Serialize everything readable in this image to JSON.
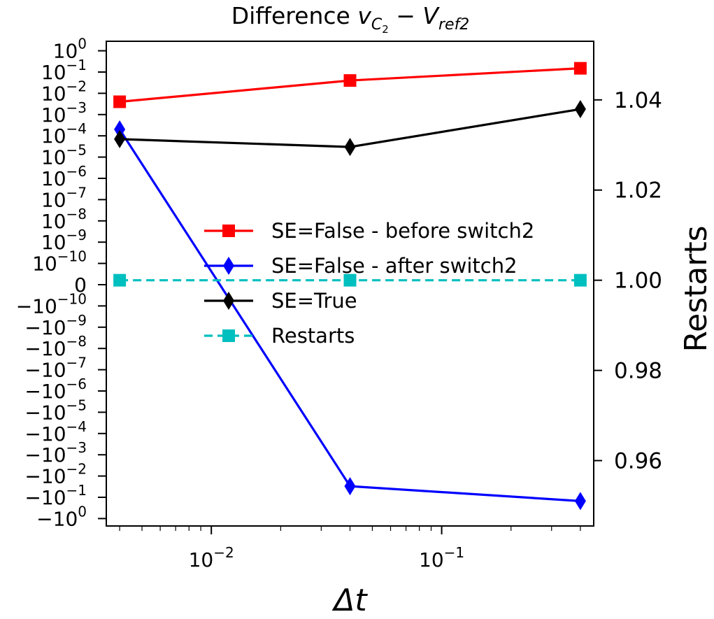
{
  "chart_data": {
    "type": "line",
    "title": "Difference v_C2 − V_ref2",
    "title_parts": {
      "prefix": "Difference ",
      "v": "v",
      "c": "C",
      "two": "2",
      "minus": " − ",
      "V": "V",
      "ref": "ref2"
    },
    "xlabel": "Δt",
    "ylabel_right": "Restarts",
    "x_scale": "log",
    "y_scale_left": "symlog",
    "x": [
      0.004,
      0.04,
      0.4
    ],
    "x_ticks": [
      {
        "value": 0.01,
        "base": "10",
        "exp": "−2"
      },
      {
        "value": 0.1,
        "base": "10",
        "exp": "−1"
      }
    ],
    "y_left_ticks": [
      {
        "base": "10",
        "exp": "0"
      },
      {
        "base": "10",
        "exp": "−1"
      },
      {
        "base": "10",
        "exp": "−2"
      },
      {
        "base": "10",
        "exp": "−3"
      },
      {
        "base": "10",
        "exp": "−4"
      },
      {
        "base": "10",
        "exp": "−5"
      },
      {
        "base": "10",
        "exp": "−6"
      },
      {
        "base": "10",
        "exp": "−7"
      },
      {
        "base": "10",
        "exp": "−8"
      },
      {
        "base": "10",
        "exp": "−9"
      },
      {
        "base": "10",
        "exp": "−10"
      },
      {
        "base": "0",
        "exp": ""
      },
      {
        "base": "−10",
        "exp": "−10"
      },
      {
        "base": "−10",
        "exp": "−9"
      },
      {
        "base": "−10",
        "exp": "−8"
      },
      {
        "base": "−10",
        "exp": "−7"
      },
      {
        "base": "−10",
        "exp": "−6"
      },
      {
        "base": "−10",
        "exp": "−5"
      },
      {
        "base": "−10",
        "exp": "−4"
      },
      {
        "base": "−10",
        "exp": "−3"
      },
      {
        "base": "−10",
        "exp": "−2"
      },
      {
        "base": "−10",
        "exp": "−1"
      },
      {
        "base": "−10",
        "exp": "0"
      }
    ],
    "y_right_ticks": [
      "0.96",
      "0.98",
      "1.00",
      "1.02",
      "1.04"
    ],
    "y_right_tick_values": [
      0.96,
      0.98,
      1.0,
      1.02,
      1.04
    ],
    "y_right_range": [
      0.9455,
      1.053
    ],
    "series": [
      {
        "name": "SE=False - before switch2",
        "axis": "left",
        "color": "#ff0000",
        "marker": "square",
        "linestyle": "solid",
        "values": [
          0.004,
          0.04,
          0.15
        ]
      },
      {
        "name": "SE=False - after switch2",
        "axis": "left",
        "color": "#0000ff",
        "marker": "thin_diamond",
        "linestyle": "solid",
        "values": [
          0.0002,
          -0.03,
          -0.15
        ]
      },
      {
        "name": "SE=True",
        "axis": "left",
        "color": "#000000",
        "marker": "thin_diamond",
        "linestyle": "solid",
        "values": [
          7e-05,
          3e-05,
          0.0018
        ]
      },
      {
        "name": "Restarts",
        "axis": "right",
        "color": "#00bfbf",
        "marker": "square",
        "linestyle": "dashed",
        "values": [
          1.0,
          1.0,
          1.0
        ]
      }
    ],
    "legend_position": "center"
  }
}
